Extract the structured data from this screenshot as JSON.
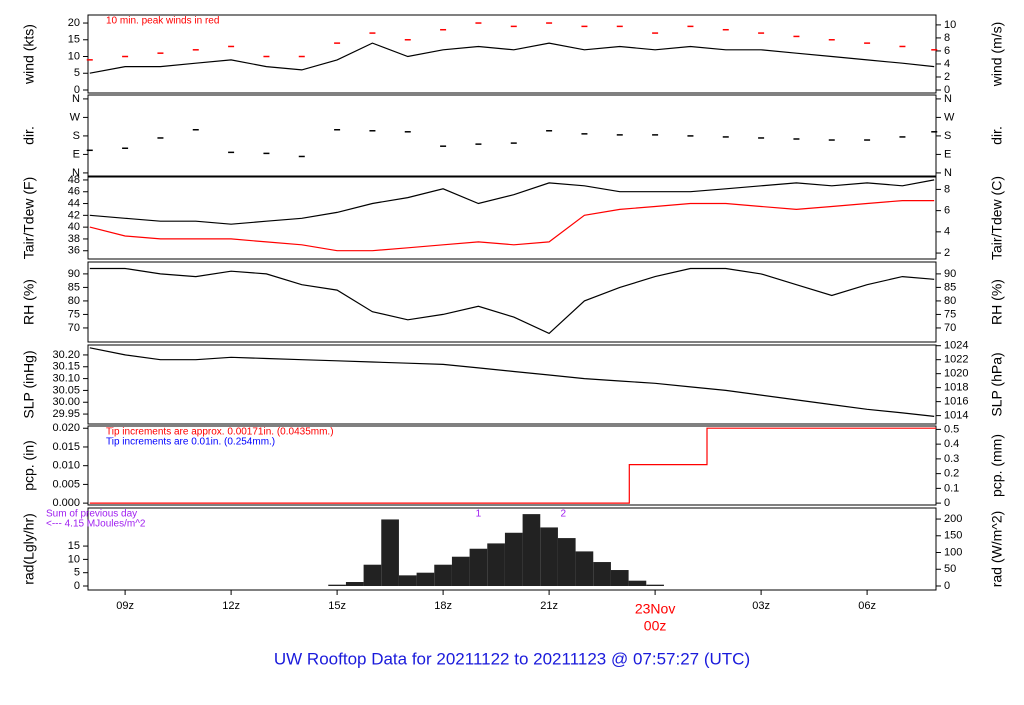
{
  "title": "UW Rooftop Data for 20211122  to  20211123 @ 07:57:27  (UTC)",
  "title_color": "#1a1adb",
  "chart_data": [
    {
      "type": "line",
      "ylabel": "wind (kts)",
      "y2label": "wind (m/s)",
      "x": [
        8,
        9,
        10,
        11,
        12,
        13,
        14,
        15,
        16,
        17,
        18,
        19,
        20,
        21,
        22,
        23,
        24,
        25,
        26,
        27,
        28,
        29,
        30,
        31,
        31.9
      ],
      "xlim": [
        7.95,
        31.95
      ],
      "ylim": [
        -0.9,
        22.4
      ],
      "yticks": [
        0,
        5,
        10,
        15,
        20
      ],
      "y2lim": [
        -0.46,
        11.52
      ],
      "y2ticks": [
        0,
        2,
        4,
        6,
        8,
        10
      ],
      "annotations": [
        {
          "text": "10 min. peak winds in red",
          "color": "#ff0000"
        }
      ],
      "series": [
        {
          "name": "wind",
          "color": "#000000",
          "style": "line",
          "values": [
            5,
            7,
            7,
            8,
            9,
            7,
            6,
            9,
            14,
            10,
            12,
            13,
            12,
            14,
            12,
            13,
            12,
            13,
            12,
            12,
            11,
            10,
            9,
            8,
            7
          ]
        },
        {
          "name": "peak",
          "color": "#ff0000",
          "style": "dash",
          "values": [
            9,
            10,
            11,
            12,
            13,
            10,
            10,
            14,
            17,
            15,
            18,
            20,
            19,
            20,
            19,
            19,
            17,
            19,
            18,
            17,
            16,
            15,
            14,
            13,
            12
          ]
        }
      ]
    },
    {
      "type": "scatter",
      "ylabel": "dir.",
      "y2label": "dir.",
      "x": [
        8,
        9,
        10,
        11,
        12,
        13,
        14,
        15,
        16,
        17,
        18,
        19,
        20,
        21,
        22,
        23,
        24,
        25,
        26,
        27,
        28,
        29,
        30,
        31,
        31.9
      ],
      "xlim": [
        7.95,
        31.95
      ],
      "ylim": [
        -15,
        379
      ],
      "yticks": [
        {
          "value": 0,
          "label": "N"
        },
        {
          "value": 90,
          "label": "E"
        },
        {
          "value": 180,
          "label": "S"
        },
        {
          "value": 270,
          "label": "W"
        },
        {
          "value": 360,
          "label": "N"
        }
      ],
      "y2lim": [
        -15,
        379
      ],
      "y2ticks": [
        {
          "value": 0,
          "label": "N"
        },
        {
          "value": 90,
          "label": "E"
        },
        {
          "value": 180,
          "label": "S"
        },
        {
          "value": 270,
          "label": "W"
        },
        {
          "value": 360,
          "label": "N"
        }
      ],
      "series": [
        {
          "name": "direction",
          "color": "#000000",
          "style": "dash",
          "values": [
            110,
            120,
            170,
            210,
            100,
            95,
            80,
            210,
            205,
            200,
            130,
            140,
            145,
            205,
            190,
            185,
            185,
            180,
            175,
            170,
            165,
            160,
            160,
            175,
            200
          ]
        }
      ]
    },
    {
      "type": "line",
      "ylabel": "Tair/Tdew (F)",
      "y2label": "Tair/Tdew (C)",
      "x": [
        8,
        9,
        10,
        11,
        12,
        13,
        14,
        15,
        16,
        17,
        18,
        19,
        20,
        21,
        22,
        23,
        24,
        25,
        26,
        27,
        28,
        29,
        30,
        31,
        31.9
      ],
      "xlim": [
        7.95,
        31.95
      ],
      "ylim": [
        34.6,
        48.5
      ],
      "yticks": [
        36,
        38,
        40,
        42,
        44,
        46,
        48
      ],
      "y2lim": [
        1.44,
        9.17
      ],
      "y2ticks": [
        2,
        4,
        6,
        8
      ],
      "series": [
        {
          "name": "Tair",
          "color": "#000000",
          "style": "line",
          "values": [
            42,
            41.5,
            41,
            41,
            40.5,
            41,
            41.5,
            42.5,
            44,
            45,
            46.5,
            44,
            45.5,
            47.5,
            47,
            46,
            46,
            46,
            46.5,
            47,
            47.5,
            47,
            47.5,
            47,
            48
          ]
        },
        {
          "name": "Tdew",
          "color": "#ff0000",
          "style": "line",
          "values": [
            40,
            38.5,
            38,
            38,
            38,
            37.5,
            37,
            36,
            36,
            36.5,
            37,
            37.5,
            37,
            37.5,
            42,
            43,
            43.5,
            44,
            44,
            43.5,
            43,
            43.5,
            44,
            44.5,
            44.5
          ]
        }
      ]
    },
    {
      "type": "line",
      "ylabel": "RH (%)",
      "y2label": "RH (%)",
      "x": [
        8,
        9,
        10,
        11,
        12,
        13,
        14,
        15,
        16,
        17,
        18,
        19,
        20,
        21,
        22,
        23,
        24,
        25,
        26,
        27,
        28,
        29,
        30,
        31,
        31.9
      ],
      "xlim": [
        7.95,
        31.95
      ],
      "ylim": [
        64.8,
        94.4
      ],
      "yticks": [
        70,
        75,
        80,
        85,
        90
      ],
      "y2lim": [
        64.8,
        94.4
      ],
      "y2ticks": [
        70,
        75,
        80,
        85,
        90
      ],
      "series": [
        {
          "name": "RH",
          "color": "#000000",
          "style": "line",
          "values": [
            92,
            92,
            90,
            89,
            91,
            90,
            86,
            84,
            76,
            73,
            75,
            78,
            74,
            68,
            80,
            85,
            89,
            92,
            92,
            90,
            86,
            82,
            86,
            89,
            88
          ]
        }
      ]
    },
    {
      "type": "line",
      "ylabel": "SLP (inHg)",
      "y2label": "SLP (hPa)",
      "x": [
        8,
        9,
        10,
        11,
        12,
        13,
        14,
        15,
        16,
        17,
        18,
        19,
        20,
        21,
        22,
        23,
        24,
        25,
        26,
        27,
        28,
        29,
        30,
        31,
        31.9
      ],
      "xlim": [
        7.95,
        31.95
      ],
      "ylim": [
        29.908,
        30.242
      ],
      "yticks": [
        29.95,
        {
          "value": 30.0,
          "label": "30.00"
        },
        30.05,
        {
          "value": 30.1,
          "label": "30.10"
        },
        30.15,
        {
          "value": 30.2,
          "label": "30.20"
        }
      ],
      "y2lim": [
        1012.8,
        1024.1
      ],
      "y2ticks": [
        1014,
        1016,
        1018,
        1020,
        1022,
        1024
      ],
      "series": [
        {
          "name": "SLP",
          "color": "#000000",
          "style": "line",
          "values": [
            30.23,
            30.2,
            30.18,
            30.18,
            30.19,
            30.185,
            30.18,
            30.175,
            30.17,
            30.165,
            30.16,
            30.145,
            30.13,
            30.115,
            30.1,
            30.09,
            30.08,
            30.065,
            30.05,
            30.03,
            30.01,
            29.99,
            29.97,
            29.955,
            29.94
          ]
        }
      ]
    },
    {
      "type": "line",
      "ylabel": "pcp. (in)",
      "y2label": "pcp. (mm)",
      "x": [
        8,
        23.27,
        23.27,
        25.47,
        25.47,
        31.95
      ],
      "xlim": [
        7.95,
        31.95
      ],
      "ylim": [
        -0.0005,
        0.0206
      ],
      "yticks": [
        {
          "value": 0,
          "label": "0.000"
        },
        0.005,
        {
          "value": 0.01,
          "label": "0.010"
        },
        0.015,
        {
          "value": 0.02,
          "label": "0.020"
        }
      ],
      "y2lim": [
        -0.0127,
        0.523
      ],
      "y2ticks": [
        0,
        0.1,
        0.2,
        0.3,
        0.4,
        0.5
      ],
      "annotations": [
        {
          "text": "Tip increments are approx. 0.00171in. (0.0435mm.)",
          "color": "#ff0000"
        },
        {
          "text": "Tip increments are 0.01in. (0.254mm.)",
          "color": "#0000ff"
        }
      ],
      "series": [
        {
          "name": "precip",
          "color": "#ff0000",
          "style": "line",
          "values": [
            0,
            0,
            0.0103,
            0.0103,
            0.02,
            0.02
          ]
        }
      ]
    },
    {
      "type": "bar",
      "ylabel": "rad(Lgly/hr)",
      "y2label": "rad (W/m^2)",
      "x": [
        8,
        8.5,
        9,
        9.5,
        10,
        10.5,
        11,
        11.5,
        12,
        12.5,
        13,
        13.5,
        14,
        14.5,
        15,
        15.5,
        16,
        16.5,
        17,
        17.5,
        18,
        18.5,
        19,
        19.5,
        20,
        20.5,
        21,
        21.5,
        22,
        22.5,
        23,
        23.5,
        24,
        24.5,
        25,
        25.5,
        26,
        26.5,
        27,
        27.5,
        28,
        28.5,
        29,
        29.5,
        30,
        30.5,
        31,
        31.5
      ],
      "xlim": [
        7.95,
        31.95
      ],
      "ylim": [
        -1.5,
        29.3
      ],
      "yticks": [
        0,
        5,
        10,
        15
      ],
      "y2lim": [
        -12,
        233
      ],
      "y2ticks": [
        0,
        50,
        100,
        150,
        200
      ],
      "xticks": [
        {
          "value": 9,
          "label": "09z"
        },
        {
          "value": 12,
          "label": "12z"
        },
        {
          "value": 15,
          "label": "15z"
        },
        {
          "value": 18,
          "label": "18z"
        },
        {
          "value": 21,
          "label": "21z"
        },
        {
          "value": 24,
          "label": "00z",
          "color": "#ff0000"
        },
        {
          "value": 27,
          "label": "03z"
        },
        {
          "value": 30,
          "label": "06z"
        }
      ],
      "date_label": {
        "text": "23Nov",
        "x": 24,
        "color": "#ff0000"
      },
      "annotations": [
        {
          "text": "Sum of previous day",
          "color": "#a020f0"
        },
        {
          "text": "<--- 4.15 MJoules/m^2",
          "color": "#a020f0"
        },
        {
          "text": "1",
          "x": 19.0,
          "color": "#a020f0"
        },
        {
          "text": "2",
          "x": 21.4,
          "color": "#a020f0"
        }
      ],
      "series": [
        {
          "name": "radiation",
          "color": "#222222",
          "style": "bar",
          "values": [
            0,
            0,
            0,
            0,
            0,
            0,
            0,
            0,
            0,
            0,
            0,
            0,
            0,
            0,
            0.5,
            1.5,
            8,
            25,
            4,
            5,
            8,
            11,
            14,
            16,
            20,
            27,
            22,
            18,
            13,
            9,
            6,
            2,
            0.5,
            0,
            0,
            0,
            0,
            0,
            0,
            0,
            0,
            0,
            0,
            0,
            0,
            0,
            0,
            0
          ]
        }
      ]
    }
  ]
}
